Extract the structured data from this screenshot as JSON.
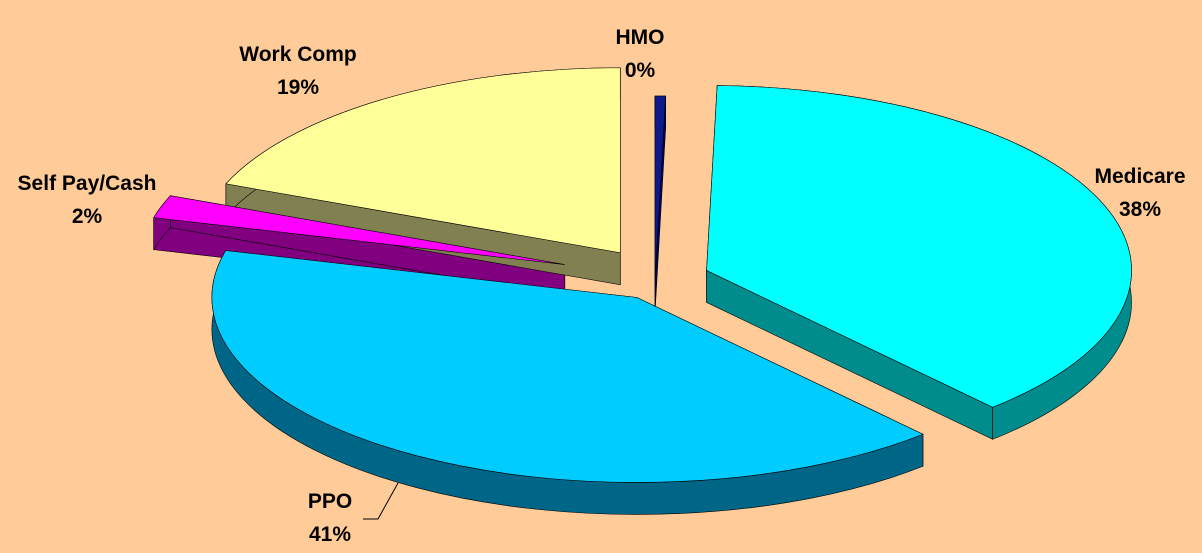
{
  "chart_data": {
    "type": "pie",
    "title": "",
    "three_d": true,
    "exploded": true,
    "start_angle_deg": 0,
    "direction": "clockwise",
    "slices": [
      {
        "label": "HMO",
        "value_label": "0%",
        "value": 0.4,
        "color": "#0D1A8C",
        "side_color": "#000060"
      },
      {
        "label": "Medicare",
        "value_label": "38%",
        "value": 38,
        "color": "#00FFFF",
        "side_color": "#008C8C"
      },
      {
        "label": "PPO",
        "value_label": "41%",
        "value": 41,
        "color": "#00CCFF",
        "side_color": "#006688"
      },
      {
        "label": "Self Pay/Cash",
        "value_label": "2%",
        "value": 2,
        "color": "#FF00FF",
        "side_color": "#800080"
      },
      {
        "label": "Work Comp",
        "value_label": "19%",
        "value": 19,
        "color": "#FFFF99",
        "side_color": "#808050"
      }
    ],
    "background": "#FFCC99"
  }
}
